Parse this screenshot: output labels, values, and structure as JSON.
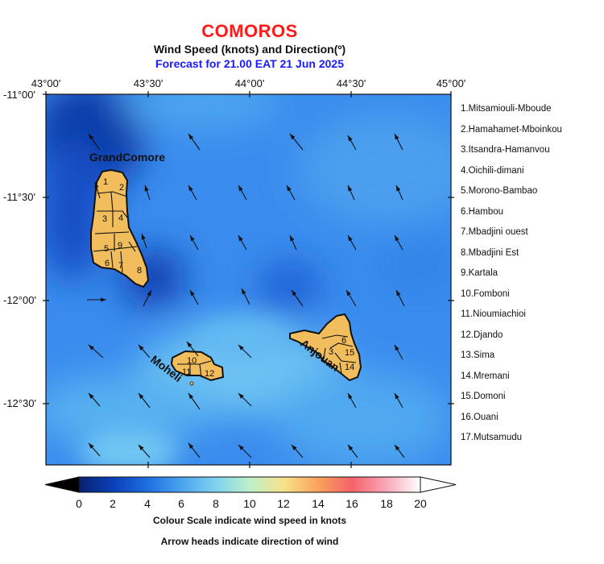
{
  "header": {
    "title": "COMOROS",
    "subtitle": "Wind Speed (knots) and Direction(º)",
    "forecast": "Forecast for  21.00 EAT 21 Jun 2025"
  },
  "axes": {
    "lon_labels": [
      "43°00'",
      "43°30'",
      "44°00'",
      "44°30'",
      "45°00'"
    ],
    "lat_labels": [
      "-11°00'",
      "-11°30'",
      "-12°00'",
      "-12°30'"
    ]
  },
  "islands": {
    "grand_comore": "GrandComore",
    "moheli": "Moheli",
    "anjouan": "Anjouan",
    "region_numbers_gc": [
      "1",
      "2",
      "3",
      "4",
      "5",
      "6",
      "7",
      "8",
      "9"
    ],
    "region_numbers_moheli": [
      "10",
      "11",
      "12"
    ],
    "region_numbers_anjouan": [
      "3",
      "15",
      "14",
      "6"
    ]
  },
  "legend": [
    "1.Mitsamiouli-Mboude",
    "2.Hamahamet-Mboinkou",
    "3.Itsandra-Hamanvou",
    "4.Oichili-dimani",
    "5.Morono-Bambao",
    "6.Hambou",
    "7.Mbadjini ouest",
    "8.Mbadjini Est",
    "9.Kartala",
    "10.Fomboni",
    "11.Nioumiachioi",
    "12.Djando",
    "13.Sima",
    "14.Mremani",
    "15.Domoni",
    "16.Ouani",
    "17.Mutsamudu"
  ],
  "colorbar": {
    "ticks": [
      "0",
      "2",
      "4",
      "6",
      "8",
      "10",
      "12",
      "14",
      "16",
      "18",
      "20"
    ],
    "caption1": "Colour Scale indicate wind speed in knots",
    "caption2": "Arrow heads indicate direction of wind",
    "colors": [
      "#08226e",
      "#0a3fb8",
      "#1e6fe0",
      "#4aa3ee",
      "#7fd3f0",
      "#bdf0c8",
      "#f7e28a",
      "#f9a35b",
      "#f4626a",
      "#f8a8b8",
      "#ffffff"
    ]
  },
  "colors": {
    "title": "#ff1a1a",
    "forecast": "#1a1aff",
    "land": "#f1bd5d",
    "field_base": "#3c8ef0",
    "field_low": "#0b2f9e"
  }
}
